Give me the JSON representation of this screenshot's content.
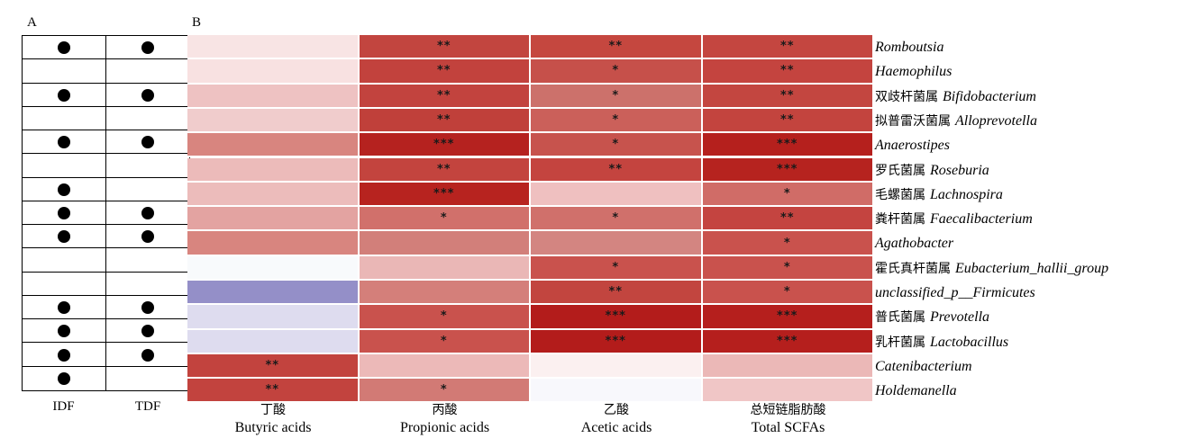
{
  "panel_labels": {
    "a": "A",
    "b": "B"
  },
  "panelA": {
    "columns": [
      "IDF",
      "TDF"
    ],
    "marks": [
      [
        true,
        true
      ],
      [
        false,
        false
      ],
      [
        true,
        true
      ],
      [
        false,
        false
      ],
      [
        true,
        true
      ],
      [
        false,
        false
      ],
      [
        true,
        false
      ],
      [
        true,
        true
      ],
      [
        true,
        true
      ],
      [
        false,
        false
      ],
      [
        false,
        false
      ],
      [
        true,
        true
      ],
      [
        true,
        true
      ],
      [
        true,
        true
      ],
      [
        true,
        false
      ]
    ]
  },
  "chart_data": {
    "type": "heatmap",
    "columns": [
      {
        "cn": "丁酸",
        "en": "Butyric acids"
      },
      {
        "cn": "丙酸",
        "en": "Propionic acids"
      },
      {
        "cn": "乙酸",
        "en": "Acetic acids"
      },
      {
        "cn": "总短链脂肪酸",
        "en": "Total SCFAs"
      }
    ],
    "rows": [
      {
        "cn": "",
        "sci": "Romboutsia"
      },
      {
        "cn": "",
        "sci": "Haemophilus"
      },
      {
        "cn": "双歧杆菌属",
        "sci": "Bifidobacterium"
      },
      {
        "cn": "拟普雷沃菌属",
        "sci": "Alloprevotella"
      },
      {
        "cn": "",
        "sci": "Anaerostipes"
      },
      {
        "cn": "罗氏菌属",
        "sci": "Roseburia"
      },
      {
        "cn": "毛螺菌属",
        "sci": "Lachnospira"
      },
      {
        "cn": "粪杆菌属",
        "sci": "Faecalibacterium"
      },
      {
        "cn": "",
        "sci": "Agathobacter"
      },
      {
        "cn": "霍氏真杆菌属",
        "sci": "Eubacterium_hallii_group"
      },
      {
        "cn": "",
        "sci": "unclassified_p__Firmicutes"
      },
      {
        "cn": "普氏菌属",
        "sci": "Prevotella"
      },
      {
        "cn": "乳杆菌属",
        "sci": "Lactobacillus"
      },
      {
        "cn": "",
        "sci": "Catenibacterium"
      },
      {
        "cn": "",
        "sci": "Holdemanella"
      }
    ],
    "colors": [
      [
        "#f8e4e4",
        "#c2453f",
        "#c5473f",
        "#c44640"
      ],
      [
        "#f8e1e1",
        "#c2423d",
        "#c6504a",
        "#c4443f"
      ],
      [
        "#eec2c2",
        "#c2433e",
        "#cc716b",
        "#c34640"
      ],
      [
        "#f0cccc",
        "#c0403a",
        "#cb605a",
        "#c3443e"
      ],
      [
        "#d8857f",
        "#b5221f",
        "#c7534d",
        "#b5201d"
      ],
      [
        "#ecbbba",
        "#c3443e",
        "#c4443f",
        "#b6231f"
      ],
      [
        "#ecbcbb",
        "#b7231f",
        "#efc0c0",
        "#d06c67"
      ],
      [
        "#e3a3a1",
        "#d1706b",
        "#d0706b",
        "#c44440"
      ],
      [
        "#d8857f",
        "#d27f7a",
        "#d38581",
        "#c9524d"
      ],
      [
        "#f8fafc",
        "#eab7b6",
        "#c9524d",
        "#c9524d"
      ],
      [
        "#948fc8",
        "#d47f7a",
        "#c2453f",
        "#c9524d"
      ],
      [
        "#dedcef",
        "#c9524d",
        "#b31c1b",
        "#b51f1d"
      ],
      [
        "#dedcef",
        "#c9524d",
        "#b31c1b",
        "#b51f1d"
      ],
      [
        "#c2433e",
        "#ecb9b8",
        "#fbf0f0",
        "#ebb8b7"
      ],
      [
        "#c2433e",
        "#d27a75",
        "#f8f8fc",
        "#f0c6c6"
      ]
    ],
    "significance": [
      [
        "",
        "**",
        "**",
        "**"
      ],
      [
        "",
        "**",
        "*",
        "**"
      ],
      [
        "",
        "**",
        "*",
        "**"
      ],
      [
        "",
        "**",
        "*",
        "**"
      ],
      [
        "",
        "***",
        "*",
        "***"
      ],
      [
        "",
        "**",
        "**",
        "***"
      ],
      [
        "",
        "***",
        "",
        "*"
      ],
      [
        "",
        "*",
        "*",
        "**"
      ],
      [
        "",
        "",
        "",
        "*"
      ],
      [
        "",
        "",
        "*",
        "*"
      ],
      [
        "",
        "",
        "**",
        "*"
      ],
      [
        "",
        "*",
        "***",
        "***"
      ],
      [
        "",
        "*",
        "***",
        "***"
      ],
      [
        "**",
        "",
        "",
        ""
      ],
      [
        "**",
        "*",
        "",
        ""
      ]
    ]
  }
}
